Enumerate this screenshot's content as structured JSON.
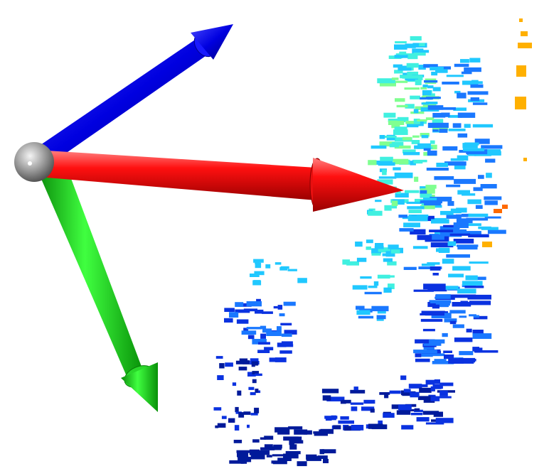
{
  "scene": {
    "background": "#ffffff",
    "axes": {
      "x_color": "#ff0000",
      "y_color": "#00e000",
      "z_color": "#0000ee",
      "origin_color": "#9a9a9a"
    },
    "point_cloud": {
      "colormap": "jet",
      "colors": [
        "#001a9a",
        "#0a32e0",
        "#1a78ff",
        "#20c8ff",
        "#40f0e0",
        "#80ff90",
        "#ffb000",
        "#ff6a00"
      ]
    }
  }
}
